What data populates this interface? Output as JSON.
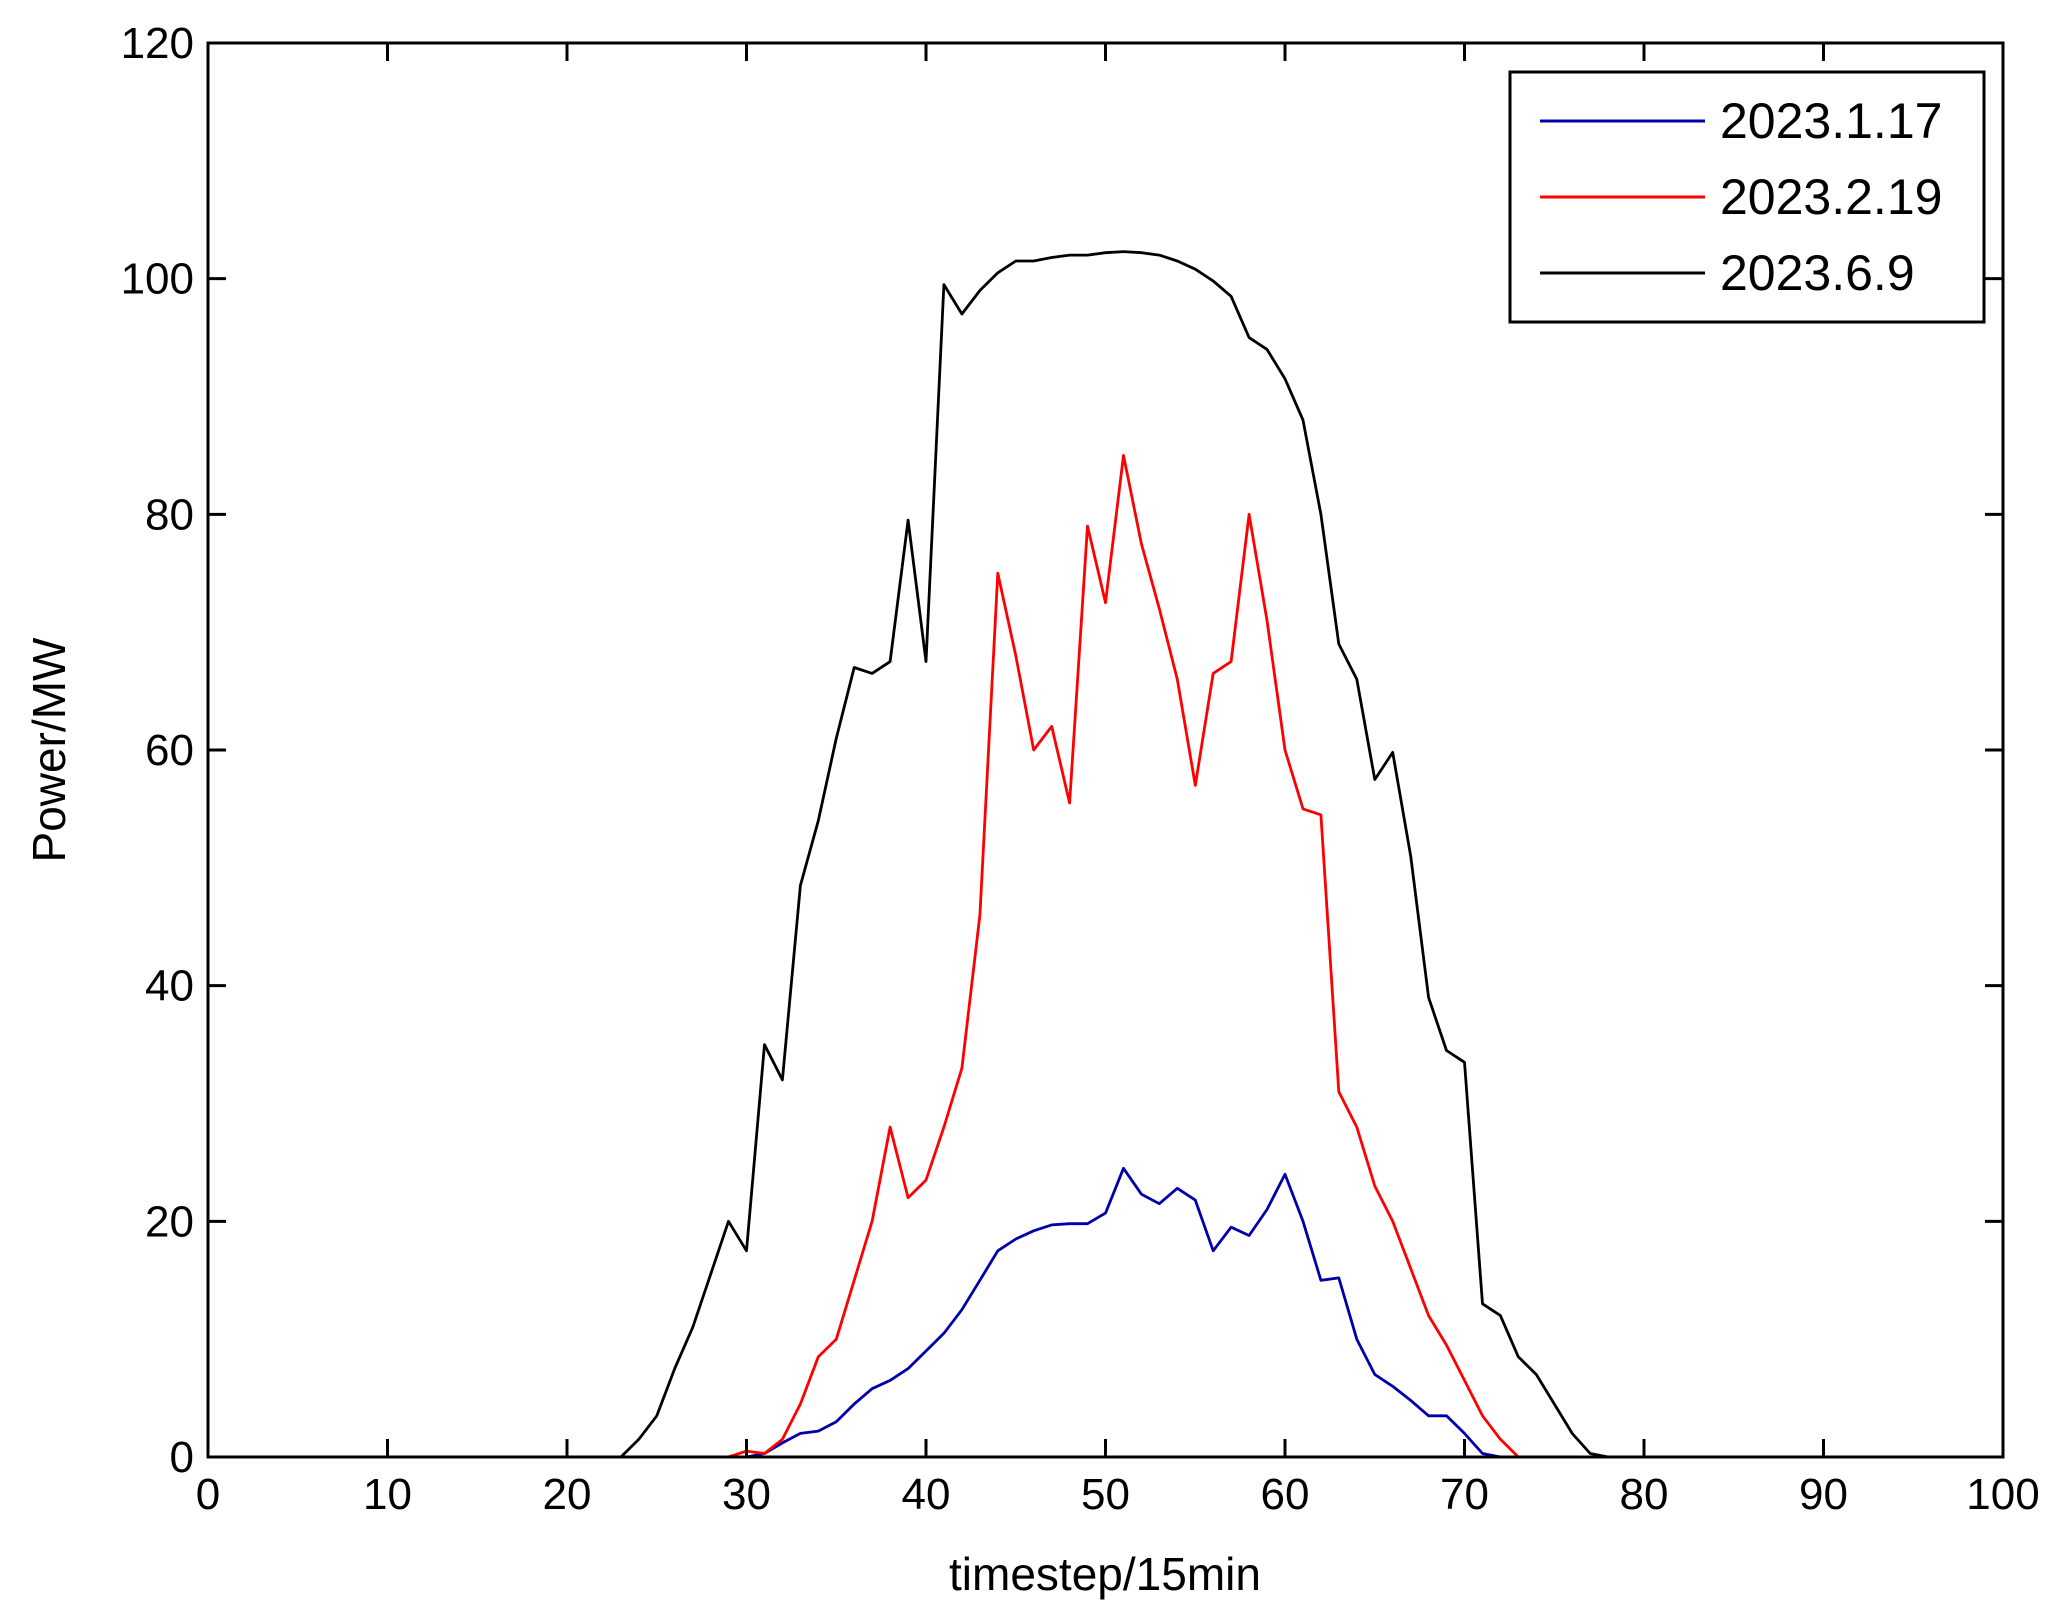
{
  "chart_data": {
    "type": "line",
    "title": "",
    "xlabel": "timestep/15min",
    "ylabel": "Power/MW",
    "xlim": [
      0,
      100
    ],
    "ylim": [
      0,
      120
    ],
    "xticks": [
      "0",
      "10",
      "20",
      "30",
      "40",
      "50",
      "60",
      "70",
      "80",
      "90",
      "100"
    ],
    "yticks": [
      "0",
      "20",
      "40",
      "60",
      "80",
      "100",
      "120"
    ],
    "grid": false,
    "legend_position": "top-right",
    "series": [
      {
        "name": "2023.1.17",
        "color": "#0000a8",
        "points": [
          [
            30,
            0
          ],
          [
            31,
            0.3
          ],
          [
            32,
            1.2
          ],
          [
            33,
            2
          ],
          [
            34,
            2.2
          ],
          [
            35,
            3
          ],
          [
            36,
            4.5
          ],
          [
            37,
            5.8
          ],
          [
            38,
            6.5
          ],
          [
            39,
            7.5
          ],
          [
            40,
            9
          ],
          [
            41,
            10.5
          ],
          [
            42,
            12.5
          ],
          [
            43,
            15
          ],
          [
            44,
            17.5
          ],
          [
            45,
            18.5
          ],
          [
            46,
            19.2
          ],
          [
            47,
            19.7
          ],
          [
            48,
            19.8
          ],
          [
            49,
            19.8
          ],
          [
            50,
            20.7
          ],
          [
            51,
            24.5
          ],
          [
            52,
            22.3
          ],
          [
            53,
            21.5
          ],
          [
            54,
            22.8
          ],
          [
            55,
            21.8
          ],
          [
            56,
            17.5
          ],
          [
            57,
            19.5
          ],
          [
            58,
            18.8
          ],
          [
            59,
            21
          ],
          [
            60,
            24
          ],
          [
            61,
            20
          ],
          [
            62,
            15
          ],
          [
            63,
            15.2
          ],
          [
            64,
            10
          ],
          [
            65,
            7
          ],
          [
            66,
            6
          ],
          [
            67,
            4.8
          ],
          [
            68,
            3.5
          ],
          [
            69,
            3.5
          ],
          [
            70,
            2
          ],
          [
            71,
            0.3
          ],
          [
            72,
            0
          ]
        ]
      },
      {
        "name": "2023.2.19",
        "color": "#ff0000",
        "points": [
          [
            29,
            0
          ],
          [
            30,
            0.5
          ],
          [
            31,
            0.3
          ],
          [
            32,
            1.5
          ],
          [
            33,
            4.5
          ],
          [
            34,
            8.5
          ],
          [
            35,
            10
          ],
          [
            36,
            15
          ],
          [
            37,
            20
          ],
          [
            38,
            28
          ],
          [
            39,
            22
          ],
          [
            40,
            23.5
          ],
          [
            41,
            28
          ],
          [
            42,
            33
          ],
          [
            43,
            46
          ],
          [
            44,
            75
          ],
          [
            45,
            68
          ],
          [
            46,
            60
          ],
          [
            47,
            62
          ],
          [
            48,
            55.5
          ],
          [
            49,
            79
          ],
          [
            50,
            72.5
          ],
          [
            51,
            85
          ],
          [
            52,
            77.5
          ],
          [
            53,
            72
          ],
          [
            54,
            66
          ],
          [
            55,
            57
          ],
          [
            56,
            66.5
          ],
          [
            57,
            67.5
          ],
          [
            58,
            80
          ],
          [
            59,
            71
          ],
          [
            60,
            60
          ],
          [
            61,
            55
          ],
          [
            62,
            54.5
          ],
          [
            63,
            31
          ],
          [
            64,
            28
          ],
          [
            65,
            23
          ],
          [
            66,
            20
          ],
          [
            67,
            16
          ],
          [
            68,
            12
          ],
          [
            69,
            9.5
          ],
          [
            70,
            6.5
          ],
          [
            71,
            3.5
          ],
          [
            72,
            1.5
          ],
          [
            73,
            0
          ]
        ]
      },
      {
        "name": "2023.6.9",
        "color": "#000000",
        "points": [
          [
            23,
            0
          ],
          [
            24,
            1.5
          ],
          [
            25,
            3.5
          ],
          [
            26,
            7.5
          ],
          [
            27,
            11
          ],
          [
            28,
            15.5
          ],
          [
            29,
            20
          ],
          [
            30,
            17.5
          ],
          [
            31,
            35
          ],
          [
            32,
            32
          ],
          [
            33,
            48.5
          ],
          [
            34,
            54
          ],
          [
            35,
            61
          ],
          [
            36,
            67
          ],
          [
            37,
            66.5
          ],
          [
            38,
            67.5
          ],
          [
            39,
            79.5
          ],
          [
            40,
            67.5
          ],
          [
            41,
            99.5
          ],
          [
            42,
            97
          ],
          [
            43,
            99
          ],
          [
            44,
            100.5
          ],
          [
            45,
            101.5
          ],
          [
            46,
            101.5
          ],
          [
            47,
            101.8
          ],
          [
            48,
            102
          ],
          [
            49,
            102
          ],
          [
            50,
            102.2
          ],
          [
            51,
            102.3
          ],
          [
            52,
            102.2
          ],
          [
            53,
            102
          ],
          [
            54,
            101.5
          ],
          [
            55,
            100.8
          ],
          [
            56,
            99.8
          ],
          [
            57,
            98.5
          ],
          [
            58,
            95
          ],
          [
            59,
            94
          ],
          [
            60,
            91.5
          ],
          [
            61,
            88
          ],
          [
            62,
            80
          ],
          [
            63,
            69
          ],
          [
            64,
            66
          ],
          [
            65,
            57.5
          ],
          [
            66,
            59.8
          ],
          [
            67,
            51
          ],
          [
            68,
            39
          ],
          [
            69,
            34.5
          ],
          [
            70,
            33.5
          ],
          [
            71,
            13
          ],
          [
            72,
            12
          ],
          [
            73,
            8.5
          ],
          [
            74,
            7
          ],
          [
            75,
            4.5
          ],
          [
            76,
            2
          ],
          [
            77,
            0.3
          ],
          [
            78,
            0
          ]
        ]
      }
    ]
  }
}
